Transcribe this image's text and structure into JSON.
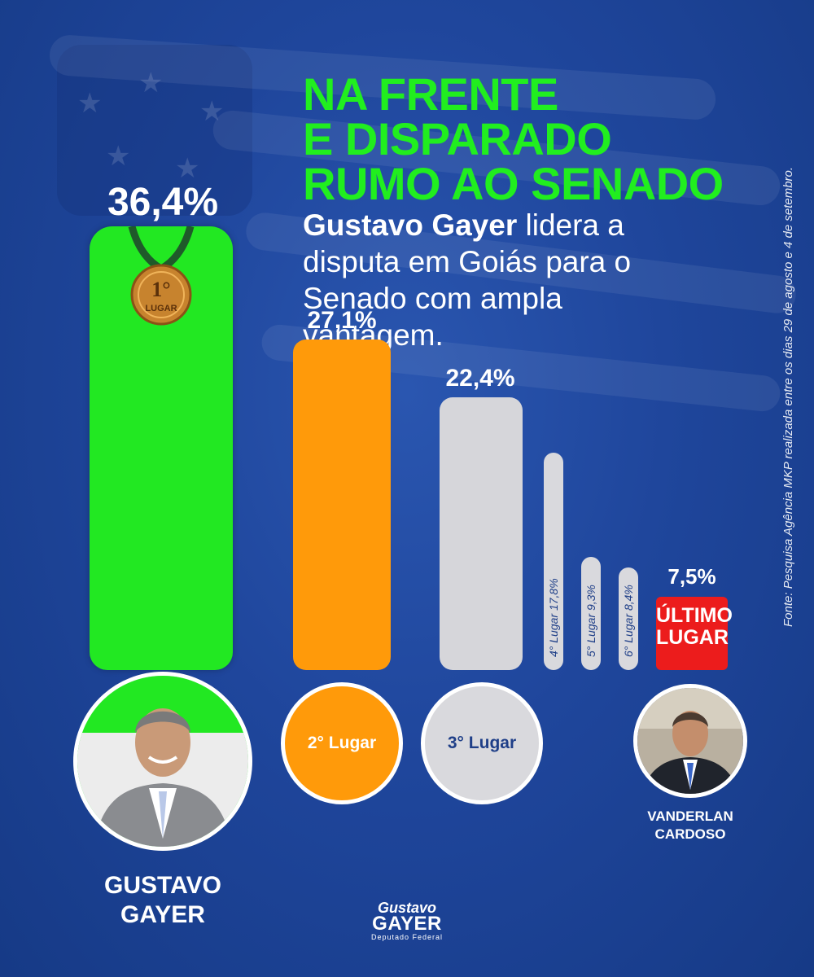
{
  "headline": [
    "NA FRENTE",
    "E DISPARADO",
    "RUMO AO SENADO"
  ],
  "subtitle": {
    "name": "Gustavo Gayer",
    "text": " lidera a disputa em Goiás para o Senado com ampla vantagem."
  },
  "source": "Fonte: Pesquisa Agência MKP realizada entre os dias 29 de agosto e 4 de setembro.",
  "medal": {
    "line1": "1°",
    "line2": "LUGAR",
    "icon": "gold-medal-icon"
  },
  "colors": {
    "first": "#22e822",
    "second": "#ff9a0a",
    "third": "#d6d6da",
    "others": "#d9d9dd",
    "last": "#ec1c1c",
    "headline": "#21ee1f",
    "background": "#1f469c"
  },
  "chart_data": {
    "type": "bar",
    "categories": [
      "GUSTAVO GAYER",
      "2° Lugar",
      "3° Lugar",
      "4° Lugar",
      "5° Lugar",
      "6° Lugar",
      "VANDERLAN CARDOSO"
    ],
    "values": [
      36.4,
      27.1,
      22.4,
      17.8,
      9.3,
      8.4,
      7.5
    ],
    "value_labels": [
      "36,4%",
      "27,1%",
      "22,4%",
      "4° Lugar 17,8%",
      "5° Lugar 9,3%",
      "6° Lugar 8,4%",
      "7,5%"
    ],
    "unit": "%"
  },
  "candidates": {
    "first": {
      "name_line1": "GUSTAVO",
      "name_line2": "GAYER",
      "photo_icon": "candidate-photo-icon"
    },
    "second": {
      "label": "2° Lugar"
    },
    "third": {
      "label": "3° Lugar"
    },
    "last": {
      "badge_line1": "ÚLTIMO",
      "badge_line2": "LUGAR",
      "name_line1": "VANDERLAN",
      "name_line2": "CARDOSO",
      "photo_icon": "candidate-photo-icon"
    }
  },
  "logo": {
    "line1": "Gustavo",
    "line2": "GAYER",
    "line3": "Deputado Federal"
  }
}
